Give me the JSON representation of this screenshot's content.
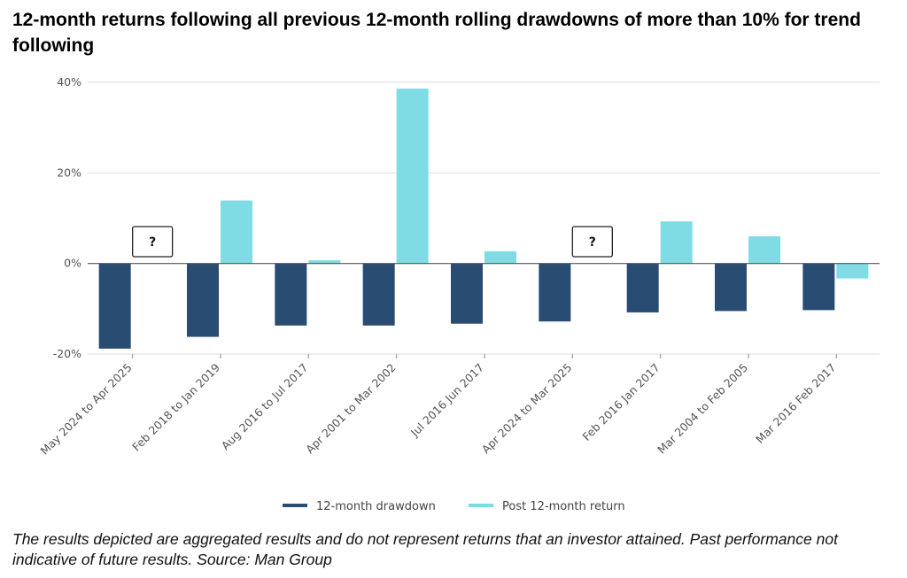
{
  "title": "12-month returns following all previous 12-month rolling drawdowns of more than 10% for trend following",
  "footnote": "The results depicted are aggregated results and do not represent returns that an investor attained. Past performance not indicative of future results. Source: Man Group",
  "colors": {
    "drawdown": "#294c72",
    "post_return": "#7fdbe4",
    "grid": "#dddddd",
    "zero_line": "#555555"
  },
  "chart_data": {
    "type": "bar",
    "title": "12-month returns following all previous 12-month rolling drawdowns of more than 10% for trend following",
    "xlabel": "",
    "ylabel": "",
    "ylim": [
      -20,
      40
    ],
    "yticks": [
      40,
      20,
      0,
      -20
    ],
    "ytick_labels": [
      "40%",
      "20%",
      "0%",
      "-20%"
    ],
    "grid": true,
    "legend_position": "bottom",
    "categories": [
      "May 2024 to Apr 2025",
      "Feb 2018 to Jan 2019",
      "Aug 2016 to Jul 2017",
      "Apr 2001 to Mar 2002",
      "Jul 2016 Jun 2017",
      "Apr 2024 to Mar 2025",
      "Feb 2016 Jan 2017",
      "Mar 2004 to Feb 2005",
      "Mar 2016 Feb 2017"
    ],
    "series": [
      {
        "name": "12-month drawdown",
        "values": [
          -18.8,
          -16.2,
          -13.7,
          -13.7,
          -13.3,
          -12.8,
          -10.8,
          -10.5,
          -10.3
        ]
      },
      {
        "name": "Post 12-month return",
        "values": [
          null,
          13.9,
          0.7,
          38.6,
          2.7,
          null,
          9.3,
          6.0,
          -3.3
        ]
      }
    ],
    "annotations": [
      {
        "category_index": 0,
        "text": "?"
      },
      {
        "category_index": 5,
        "text": "?"
      }
    ]
  }
}
